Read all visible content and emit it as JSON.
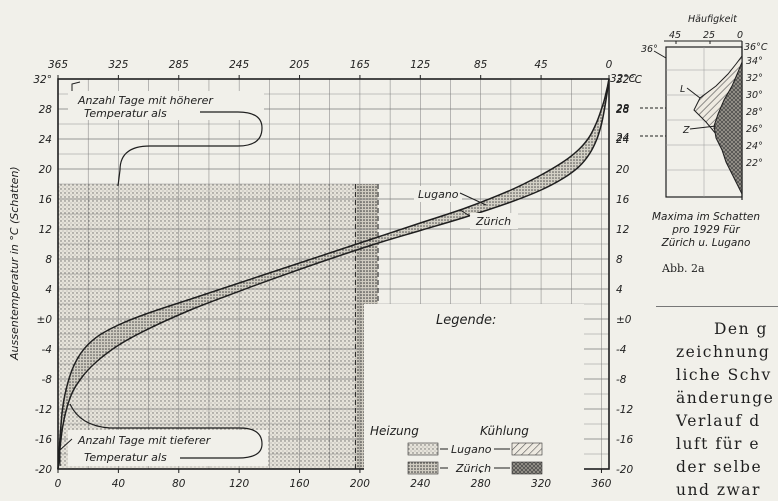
{
  "chart_data": [
    {
      "type": "line",
      "top_axis_ticks": [
        "365",
        "325",
        "285",
        "245",
        "205",
        "165",
        "125",
        "85",
        "45",
        "0"
      ],
      "bottom_axis_ticks": [
        "0",
        "40",
        "80",
        "120",
        "160",
        "200",
        "240",
        "280",
        "320",
        "360"
      ],
      "y_ticks_left": [
        "32°",
        "28",
        "24",
        "20",
        "16",
        "12",
        "8",
        "4",
        "±0",
        "-4",
        "-8",
        "-12",
        "-16",
        "-20"
      ],
      "y_ticks_right": [
        "32°C",
        "28",
        "24",
        "20",
        "16",
        "12",
        "8",
        "4",
        "±0",
        "-4",
        "-8",
        "-12",
        "-16",
        "-20"
      ],
      "xlim": [
        0,
        365
      ],
      "ylim": [
        -20,
        32
      ],
      "ylabel": "Aussentemperatur in °C (Schatten)",
      "annotation_top": [
        "Anzahl Tage mit höherer",
        "Temperatur als"
      ],
      "annotation_bottom": [
        "Anzahl Tage mit tieferer",
        "Temperatur als"
      ],
      "series": [
        {
          "name": "Lugano",
          "x": [
            0,
            3,
            8,
            15,
            25,
            40,
            60,
            90,
            120,
            150,
            180,
            210,
            240,
            270,
            300,
            320,
            335,
            345,
            352,
            357,
            360,
            362,
            364,
            365
          ],
          "y": [
            -20,
            -12,
            -7.5,
            -4.6,
            -2.5,
            -0.8,
            0.8,
            2.8,
            4.8,
            6.8,
            8.8,
            10.8,
            12.8,
            14.8,
            17.2,
            19.2,
            21.0,
            22.6,
            24.3,
            26.3,
            28.0,
            29.3,
            31.0,
            32
          ]
        },
        {
          "name": "Zürich",
          "x": [
            0,
            3,
            8,
            15,
            25,
            40,
            60,
            90,
            120,
            150,
            180,
            210,
            240,
            270,
            300,
            320,
            335,
            345,
            352,
            357,
            360,
            362,
            364,
            365
          ],
          "y": [
            -20,
            -14.5,
            -10.5,
            -8.0,
            -5.8,
            -3.5,
            -1.3,
            1.4,
            3.7,
            5.9,
            8.0,
            10.0,
            11.8,
            13.6,
            15.6,
            17.2,
            18.8,
            20.3,
            22.0,
            24.0,
            26.0,
            28.0,
            30.5,
            32
          ]
        }
      ],
      "shaded_regions": [
        {
          "label": "Heizung Lugano",
          "x": [
            0,
            197
          ],
          "y": [
            -20,
            18
          ]
        },
        {
          "label": "Heizung Zürich",
          "x": [
            0,
            212
          ],
          "y": [
            -20,
            18
          ]
        }
      ],
      "legend": {
        "title": "Legende:",
        "columns": [
          "Heizung",
          "Kühlung"
        ],
        "rows": [
          "Lugano",
          "Zürich"
        ]
      }
    },
    {
      "type": "area",
      "title": "Häufigkeit",
      "x_ticks": [
        "45",
        "25",
        "0"
      ],
      "y_ticks_left": [
        "36°",
        "32°C",
        "28",
        "24"
      ],
      "y_ticks_right": [
        "36°C",
        "34°",
        "32°",
        "30°",
        "28°",
        "26°",
        "24°",
        "22°"
      ],
      "series_labels": [
        "L",
        "Z"
      ],
      "caption": [
        "Maxima im Schatten",
        "pro 1929  Für",
        "Zürich u. Lugano"
      ]
    }
  ],
  "figure_caption": "Abb. 2a",
  "body_text": {
    "line1": "Den g",
    "line2": "zeichnung",
    "line3": "liche Schv",
    "line4": "änderunge",
    "line5": "Verlauf d",
    "line6": "luft für e",
    "line7": "der selbe",
    "line8": "und zwar"
  }
}
